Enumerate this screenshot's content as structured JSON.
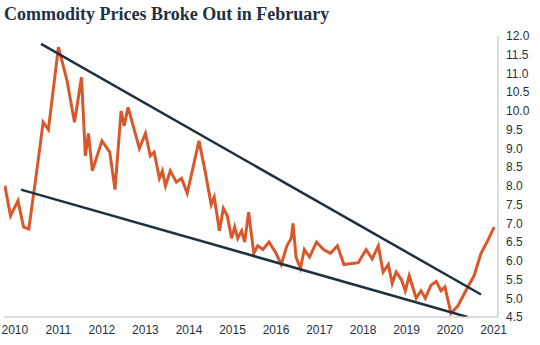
{
  "chart_data": {
    "type": "line",
    "title": "Commodity Prices Broke Out in February",
    "xlim": [
      2009.75,
      2021.1
    ],
    "xticks": [
      2010,
      2011,
      2012,
      2013,
      2014,
      2015,
      2016,
      2017,
      2018,
      2019,
      2020,
      2021
    ],
    "ylim": [
      4.5,
      12.0
    ],
    "yticks": [
      4.5,
      {
        "value": 5,
        "label": "5.0"
      },
      5.5,
      {
        "value": 6,
        "label": "6.0"
      },
      6.5,
      {
        "value": 7,
        "label": "7.0"
      },
      7.5,
      {
        "value": 8,
        "label": "8.0"
      },
      8.5,
      {
        "value": 9,
        "label": "9.0"
      },
      9.5,
      {
        "value": 10,
        "label": "10.0"
      },
      10.5,
      {
        "value": 11,
        "label": "11.0"
      },
      11.5,
      {
        "value": 12,
        "label": "12.0"
      }
    ],
    "grid": false,
    "series": [
      {
        "color": "#d9582b",
        "line_style": "solid",
        "x": [
          2009.77,
          2009.9,
          2010.07,
          2010.2,
          2010.32,
          2010.48,
          2010.65,
          2010.77,
          2011.0,
          2011.2,
          2011.37,
          2011.53,
          2011.62,
          2011.69,
          2011.78,
          2012.0,
          2012.18,
          2012.3,
          2012.44,
          2012.51,
          2012.6,
          2012.86,
          2013.0,
          2013.11,
          2013.2,
          2013.32,
          2013.39,
          2013.46,
          2013.57,
          2013.71,
          2013.83,
          2013.96,
          2014.23,
          2014.37,
          2014.51,
          2014.58,
          2014.7,
          2014.79,
          2014.88,
          2014.98,
          2015.05,
          2015.12,
          2015.21,
          2015.28,
          2015.37,
          2015.49,
          2015.58,
          2015.7,
          2015.84,
          2016.0,
          2016.12,
          2016.25,
          2016.35,
          2016.39,
          2016.46,
          2016.56,
          2016.65,
          2016.77,
          2016.93,
          2017.09,
          2017.25,
          2017.41,
          2017.56,
          2017.89,
          2018.07,
          2018.21,
          2018.35,
          2018.46,
          2018.58,
          2018.67,
          2018.76,
          2018.88,
          2018.97,
          2019.06,
          2019.22,
          2019.33,
          2019.43,
          2019.56,
          2019.68,
          2019.79,
          2019.88,
          2020.02,
          2020.18,
          2020.36,
          2020.55,
          2020.71,
          2020.87,
          2021.01
        ],
        "values": [
          8.0,
          7.2,
          7.6,
          6.9,
          6.85,
          8.2,
          9.7,
          9.5,
          11.7,
          10.8,
          9.7,
          10.9,
          8.8,
          9.4,
          8.4,
          9.2,
          8.9,
          7.9,
          10.0,
          9.6,
          10.1,
          9.0,
          9.4,
          8.8,
          8.9,
          8.2,
          8.4,
          8.0,
          8.4,
          8.1,
          8.2,
          7.8,
          9.2,
          8.4,
          7.5,
          7.7,
          6.8,
          7.4,
          7.2,
          6.6,
          6.9,
          6.6,
          6.8,
          6.5,
          7.3,
          6.2,
          6.4,
          6.3,
          6.5,
          6.2,
          5.9,
          6.4,
          6.6,
          7.0,
          6.1,
          5.8,
          6.3,
          6.1,
          6.5,
          6.3,
          6.2,
          6.4,
          5.9,
          5.95,
          6.3,
          6.05,
          6.4,
          5.7,
          5.9,
          5.4,
          5.7,
          5.5,
          5.2,
          5.6,
          5.0,
          5.2,
          5.0,
          5.35,
          5.45,
          5.2,
          5.3,
          4.6,
          4.8,
          5.2,
          5.6,
          6.2,
          6.55,
          6.9
        ]
      },
      {
        "color": "#1f3140",
        "line_style": "solid",
        "x": [
          2010.6,
          2020.71
        ],
        "values": [
          11.79,
          5.1
        ]
      },
      {
        "color": "#1f3140",
        "line_style": "solid",
        "x": [
          2010.14,
          2020.4
        ],
        "values": [
          7.9,
          4.5
        ]
      }
    ]
  }
}
